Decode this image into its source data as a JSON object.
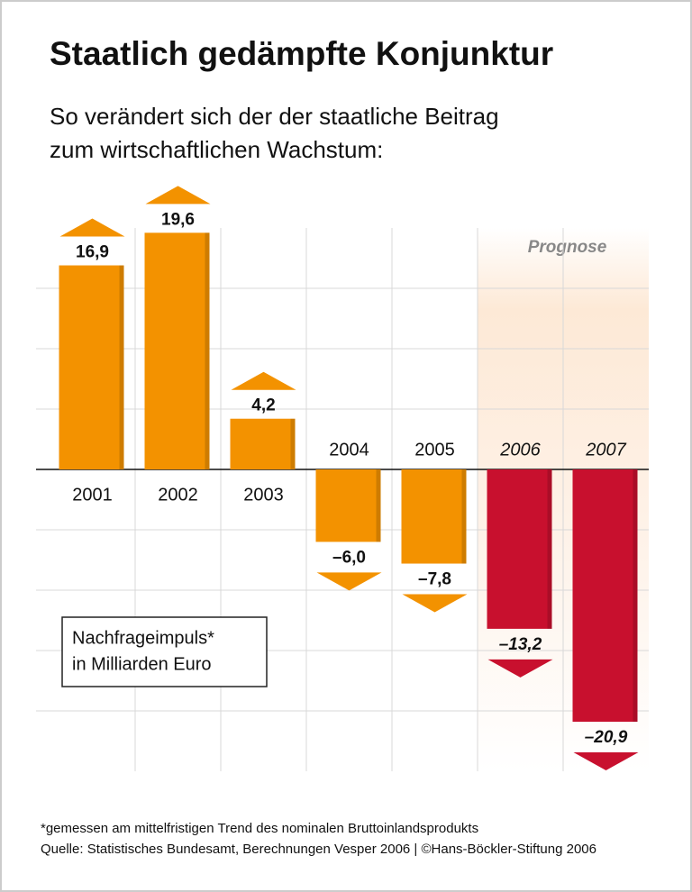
{
  "chart_data": {
    "type": "bar",
    "title": "Staatlich gedämpfte Konjunktur",
    "subtitle": [
      "So verändert sich der der staatliche Beitrag",
      "zum wirtschaftlichen Wachstum:"
    ],
    "annotation": "Prognose",
    "legend_box": [
      "Nachfrageimpuls*",
      "in Milliarden Euro"
    ],
    "footnotes": [
      "*gemessen am mittelfristigen Trend des nominalen Bruttoinlandsprodukts",
      "Quelle: Statistisches Bundesamt, Berechnungen Vesper 2006 | ©Hans-Böckler-Stiftung 2006"
    ],
    "categories": [
      "2001",
      "2002",
      "2003",
      "2004",
      "2005",
      "2006",
      "2007"
    ],
    "values": [
      16.9,
      19.6,
      4.2,
      -6.0,
      -7.8,
      -13.2,
      -20.9
    ],
    "value_labels": [
      "16,9",
      "19,6",
      "4,2",
      "–6,0",
      "–7,8",
      "–13,2",
      "–20,9"
    ],
    "colors": [
      "#f39200",
      "#f39200",
      "#f39200",
      "#f39200",
      "#f39200",
      "#c8102e",
      "#c8102e"
    ],
    "ylim": [
      -25,
      20
    ],
    "yticks": [
      -20,
      -15,
      -10,
      -5,
      5,
      10,
      15
    ],
    "grid": true
  }
}
